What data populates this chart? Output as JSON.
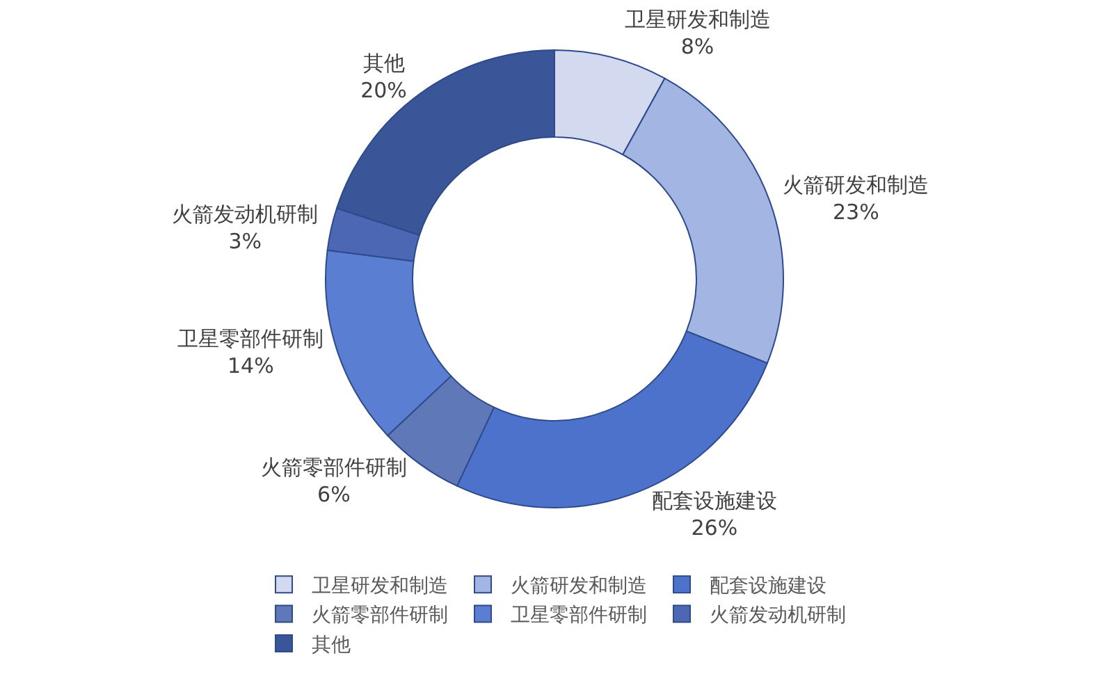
{
  "chart_data": {
    "type": "donut",
    "categories": [
      "卫星研发和制造",
      "火箭研发和制造",
      "配套设施建设",
      "火箭零部件研制",
      "卫星零部件研制",
      "火箭发动机研制",
      "其他"
    ],
    "values": [
      8,
      23,
      26,
      6,
      14,
      3,
      20
    ],
    "value_labels": [
      "8%",
      "23%",
      "26%",
      "6%",
      "14%",
      "3%",
      "20%"
    ],
    "colors": [
      "#d3daf0",
      "#a3b5e2",
      "#4d72cc",
      "#5f78b8",
      "#5a7fd2",
      "#4c68b4",
      "#3a5699"
    ],
    "legend": "bottom"
  }
}
